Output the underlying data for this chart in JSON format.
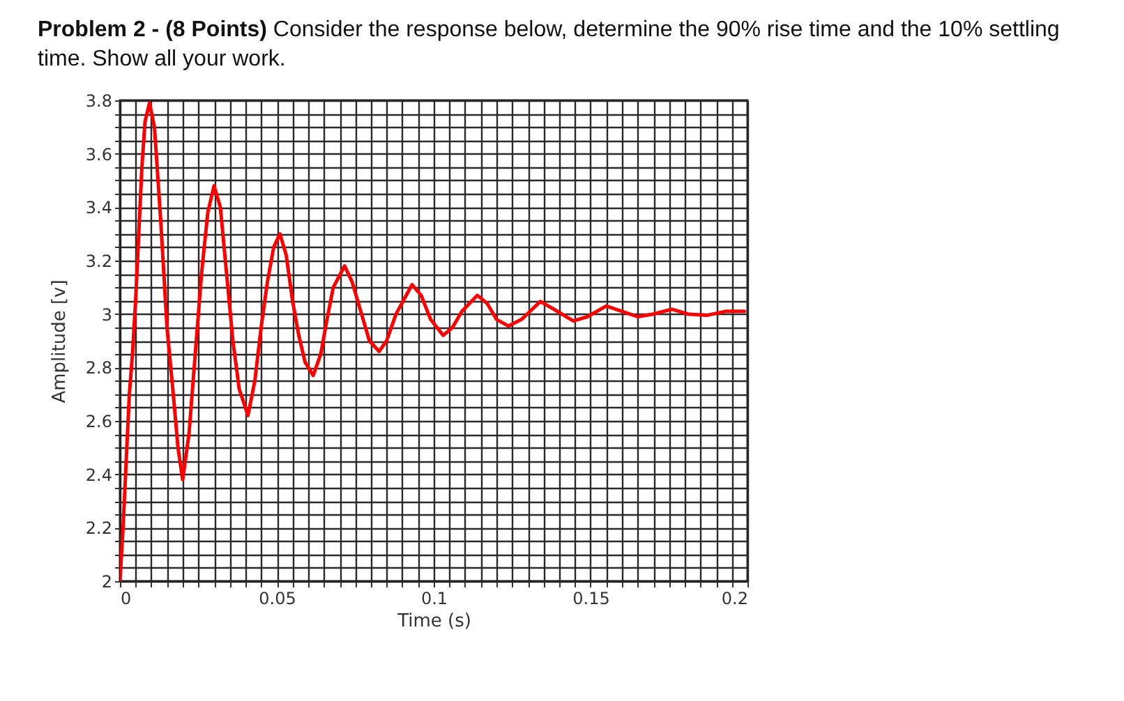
{
  "chart_data": {
    "type": "line",
    "title": "Problem 2 - (8 Points)",
    "subtitle": "Consider the response below, determine the 90% rise time and the 10% settling time.  Show all your work.",
    "xlabel": "Time (s)",
    "ylabel": "Amplitude [v]",
    "x": [
      0,
      0.001,
      0.002,
      0.003,
      0.004,
      0.005,
      0.006,
      0.007,
      0.008,
      0.0094,
      0.011,
      0.013,
      0.015,
      0.017,
      0.0185,
      0.02,
      0.022,
      0.024,
      0.026,
      0.028,
      0.03,
      0.032,
      0.034,
      0.036,
      0.038,
      0.0408,
      0.043,
      0.045,
      0.047,
      0.049,
      0.051,
      0.053,
      0.055,
      0.057,
      0.059,
      0.0616,
      0.064,
      0.066,
      0.068,
      0.0716,
      0.074,
      0.077,
      0.0795,
      0.0826,
      0.085,
      0.088,
      0.0931,
      0.096,
      0.099,
      0.103,
      0.106,
      0.109,
      0.1139,
      0.117,
      0.12,
      0.1238,
      0.128,
      0.134,
      0.138,
      0.1445,
      0.149,
      0.155,
      0.16,
      0.165,
      0.17,
      0.176,
      0.181,
      0.187,
      0.193,
      0.199
    ],
    "series": [
      {
        "color": "#ff0000",
        "values": [
          2.0,
          2.2,
          2.45,
          2.7,
          2.85,
          3.05,
          3.3,
          3.55,
          3.72,
          3.79,
          3.7,
          3.35,
          2.95,
          2.7,
          2.5,
          2.38,
          2.55,
          2.85,
          3.15,
          3.38,
          3.48,
          3.4,
          3.15,
          2.9,
          2.72,
          2.62,
          2.75,
          2.95,
          3.12,
          3.25,
          3.3,
          3.22,
          3.05,
          2.92,
          2.82,
          2.77,
          2.85,
          2.98,
          3.1,
          3.18,
          3.12,
          3.0,
          2.9,
          2.86,
          2.9,
          3.0,
          3.11,
          3.07,
          2.98,
          2.92,
          2.95,
          3.01,
          3.07,
          3.04,
          2.98,
          2.955,
          2.98,
          3.047,
          3.02,
          2.974,
          2.99,
          3.03,
          3.01,
          2.99,
          3.0,
          3.018,
          3.0,
          2.995,
          3.01,
          3.01
        ]
      }
    ],
    "xlim": [
      0,
      0.2
    ],
    "ylim": [
      2,
      3.8
    ],
    "xticks": [
      0,
      {
        "value": 0.005,
        "label": null
      },
      {
        "value": 0.01,
        "label": null
      },
      {
        "value": 0.015,
        "label": null
      },
      {
        "value": 0.02,
        "label": null
      },
      {
        "value": 0.025,
        "label": null
      },
      {
        "value": 0.03,
        "label": null
      },
      {
        "value": 0.035,
        "label": null
      },
      {
        "value": 0.04,
        "label": null
      },
      {
        "value": 0.045,
        "label": null
      },
      0.05,
      {
        "value": 0.055,
        "label": null
      },
      {
        "value": 0.06,
        "label": null
      },
      {
        "value": 0.065,
        "label": null
      },
      {
        "value": 0.07,
        "label": null
      },
      {
        "value": 0.075,
        "label": null
      },
      {
        "value": 0.08,
        "label": null
      },
      {
        "value": 0.085,
        "label": null
      },
      {
        "value": 0.09,
        "label": null
      },
      {
        "value": 0.095,
        "label": null
      },
      0.1,
      {
        "value": 0.105,
        "label": null
      },
      {
        "value": 0.11,
        "label": null
      },
      {
        "value": 0.115,
        "label": null
      },
      {
        "value": 0.12,
        "label": null
      },
      {
        "value": 0.125,
        "label": null
      },
      {
        "value": 0.13,
        "label": null
      },
      {
        "value": 0.135,
        "label": null
      },
      {
        "value": 0.14,
        "label": null
      },
      {
        "value": 0.145,
        "label": null
      },
      0.15,
      {
        "value": 0.155,
        "label": null
      },
      {
        "value": 0.16,
        "label": null
      },
      {
        "value": 0.165,
        "label": null
      },
      {
        "value": 0.17,
        "label": null
      },
      {
        "value": 0.175,
        "label": null
      },
      {
        "value": 0.18,
        "label": null
      },
      {
        "value": 0.185,
        "label": null
      },
      {
        "value": 0.19,
        "label": null
      },
      {
        "value": 0.195,
        "label": null
      },
      0.2
    ],
    "yticks": [
      2,
      {
        "value": 2.05,
        "label": null
      },
      {
        "value": 2.1,
        "label": null
      },
      {
        "value": 2.15,
        "label": null
      },
      2.2,
      {
        "value": 2.25,
        "label": null
      },
      {
        "value": 2.3,
        "label": null
      },
      {
        "value": 2.35,
        "label": null
      },
      2.4,
      {
        "value": 2.45,
        "label": null
      },
      {
        "value": 2.5,
        "label": null
      },
      {
        "value": 2.55,
        "label": null
      },
      2.6,
      {
        "value": 2.65,
        "label": null
      },
      {
        "value": 2.7,
        "label": null
      },
      {
        "value": 2.75,
        "label": null
      },
      2.8,
      {
        "value": 2.85,
        "label": null
      },
      {
        "value": 2.9,
        "label": null
      },
      {
        "value": 2.95,
        "label": null
      },
      3,
      {
        "value": 3.05,
        "label": null
      },
      {
        "value": 3.1,
        "label": null
      },
      {
        "value": 3.15,
        "label": null
      },
      3.2,
      {
        "value": 3.25,
        "label": null
      },
      {
        "value": 3.3,
        "label": null
      },
      {
        "value": 3.35,
        "label": null
      },
      3.4,
      {
        "value": 3.45,
        "label": null
      },
      {
        "value": 3.5,
        "label": null
      },
      {
        "value": 3.55,
        "label": null
      },
      3.6,
      {
        "value": 3.65,
        "label": null
      },
      {
        "value": 3.7,
        "label": null
      },
      {
        "value": 3.75,
        "label": null
      },
      3.8
    ],
    "grid": true,
    "marker": "none",
    "line_style": "solid"
  }
}
